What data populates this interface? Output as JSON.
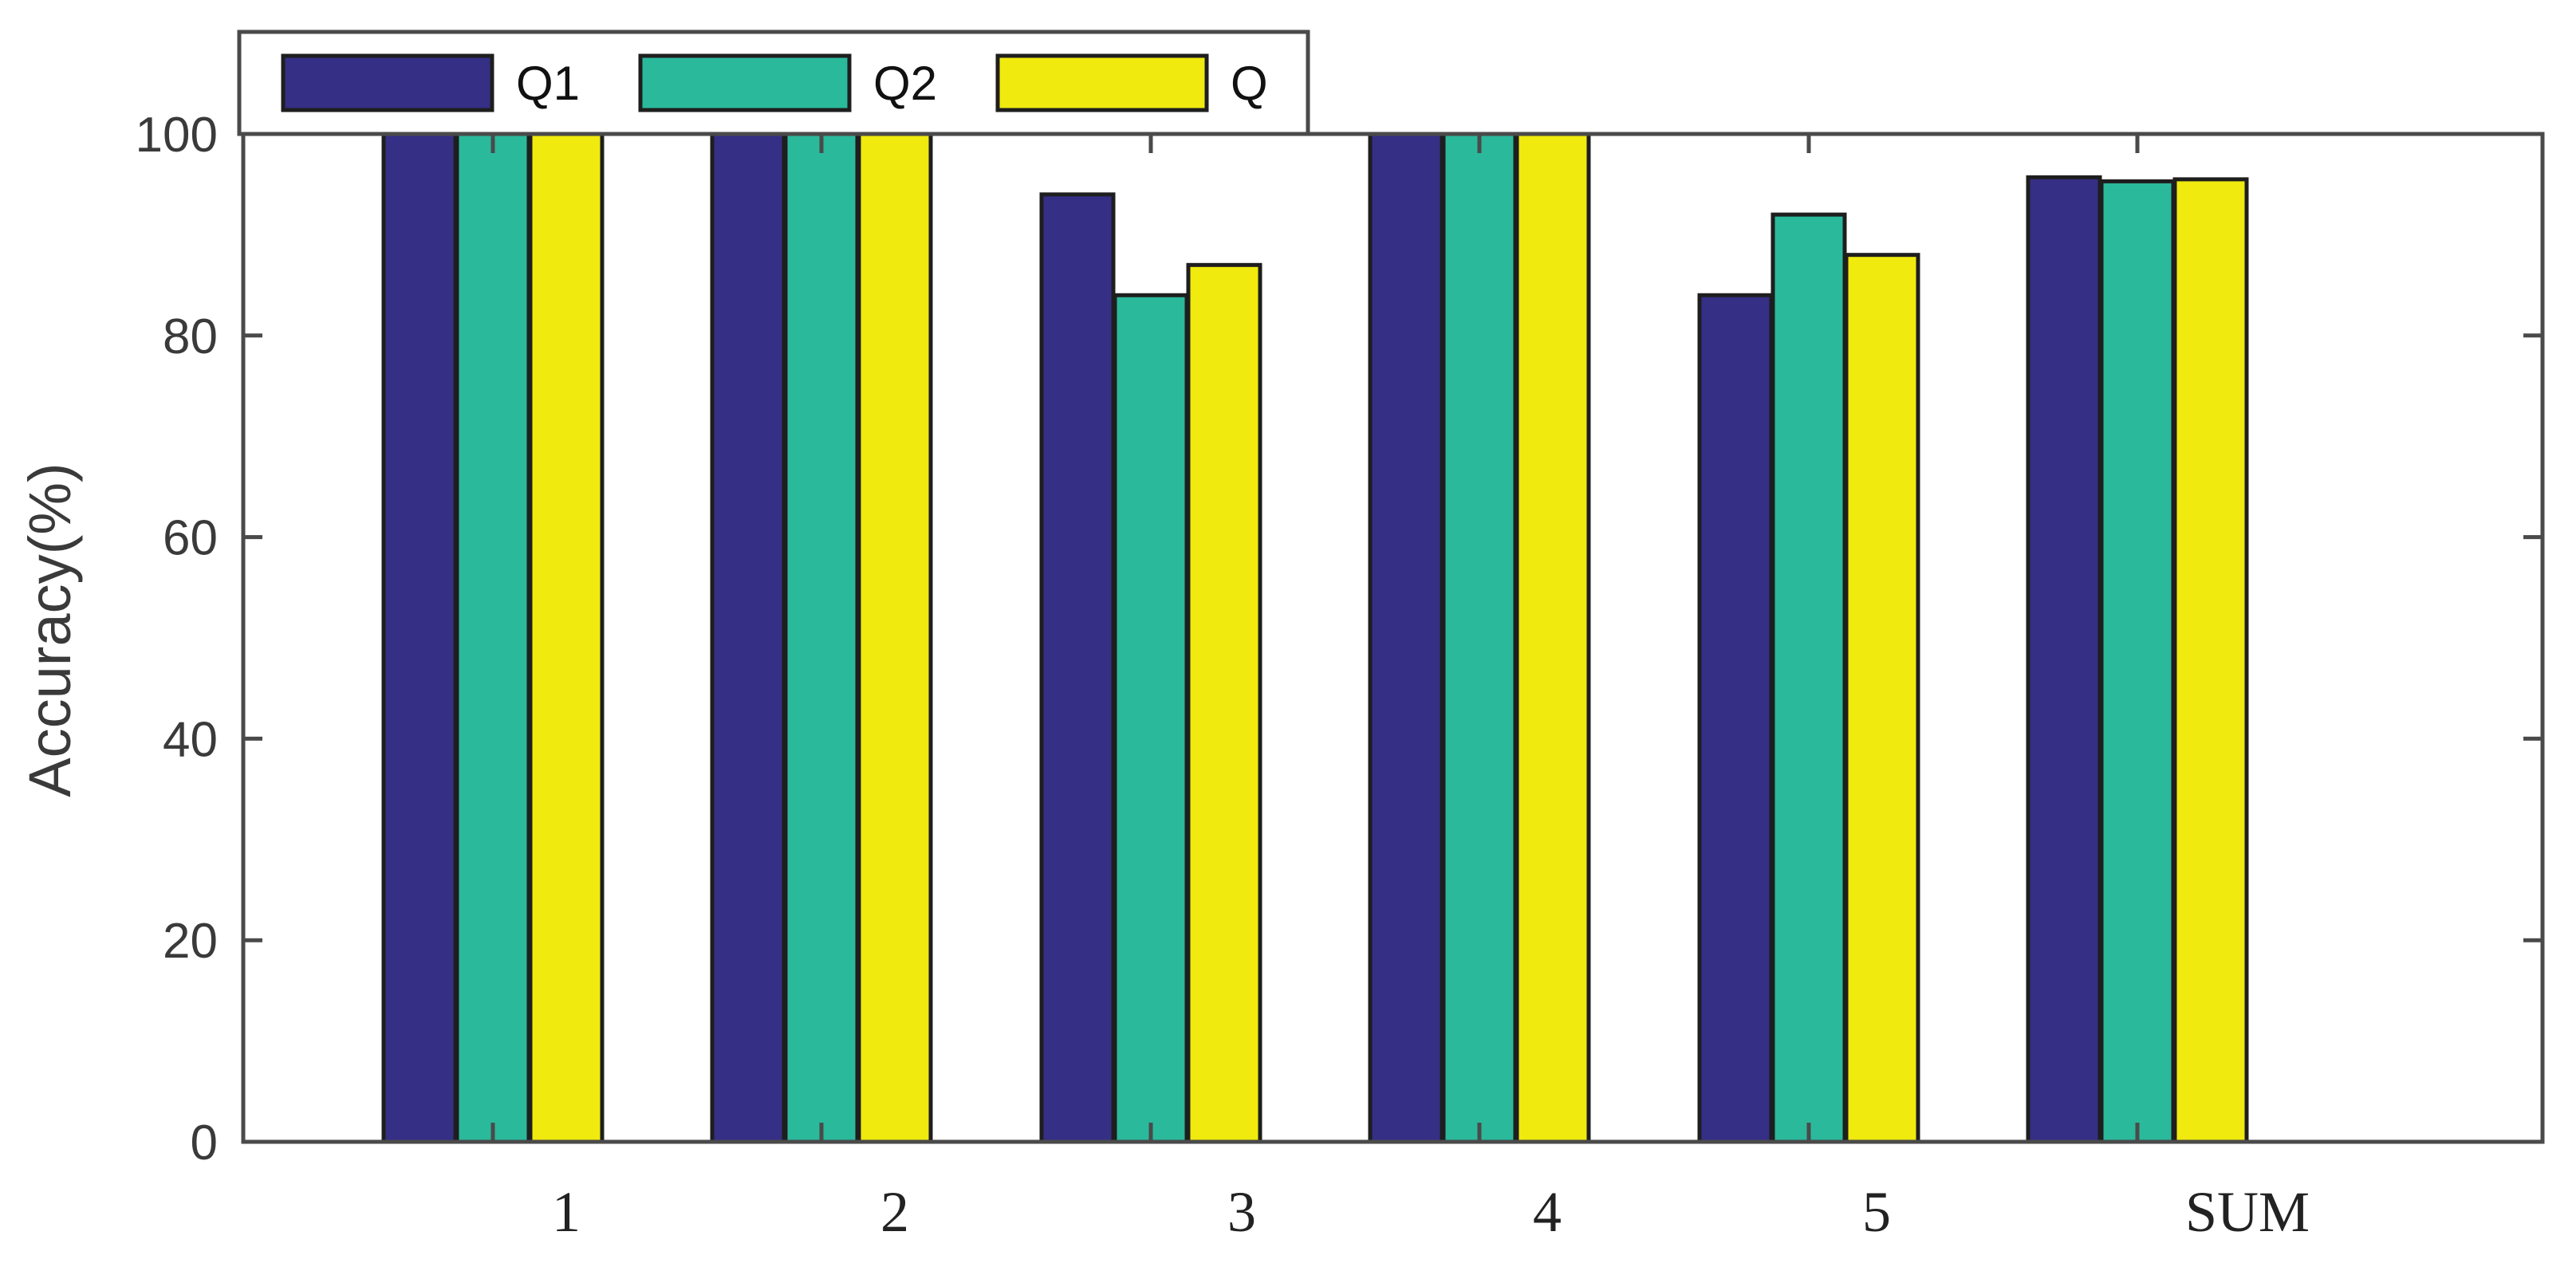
{
  "chart_data": {
    "type": "bar",
    "categories": [
      "1",
      "2",
      "3",
      "4",
      "5",
      "SUM"
    ],
    "series": [
      {
        "name": "Q1",
        "color": "#352f86",
        "values": [
          100,
          100,
          94,
          100,
          84,
          95.7
        ]
      },
      {
        "name": "Q2",
        "color": "#2bb99c",
        "values": [
          100,
          100,
          84,
          100,
          92,
          95.3
        ]
      },
      {
        "name": "Q",
        "color": "#f0ea0f",
        "values": [
          100,
          100,
          87,
          100,
          88,
          95.5
        ]
      }
    ],
    "ylabel": "Accuracy(%)",
    "xlabel": "",
    "ylim": [
      0,
      100
    ],
    "yticks": [
      "0",
      "20",
      "40",
      "60",
      "80",
      "100"
    ],
    "grid": false,
    "legend_position": "top-left, outside above plot, horizontal"
  }
}
